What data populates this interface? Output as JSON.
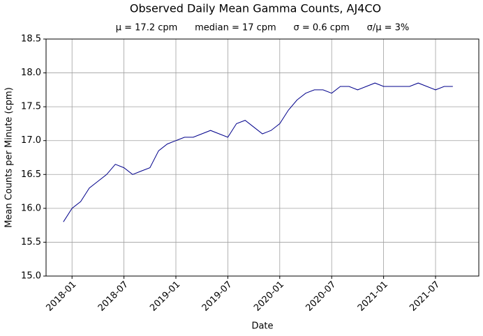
{
  "chart_data": {
    "type": "line",
    "title": "Observed Daily Mean Gamma Counts, AJ4CO",
    "subtitle": "μ = 17.2 cpm      median = 17 cpm      σ = 0.6 cpm      σ/μ = 3%",
    "xlabel": "Date",
    "ylabel": "Mean Counts per Minute (cpm)",
    "x": [
      "2017-12",
      "2018-01",
      "2018-02",
      "2018-03",
      "2018-04",
      "2018-05",
      "2018-06",
      "2018-07",
      "2018-08",
      "2018-09",
      "2018-10",
      "2018-11",
      "2018-12",
      "2019-01",
      "2019-02",
      "2019-03",
      "2019-04",
      "2019-05",
      "2019-06",
      "2019-07",
      "2019-08",
      "2019-09",
      "2019-10",
      "2019-11",
      "2019-12",
      "2020-01",
      "2020-02",
      "2020-03",
      "2020-04",
      "2020-05",
      "2020-06",
      "2020-07",
      "2020-08",
      "2020-09",
      "2020-10",
      "2020-11",
      "2020-12",
      "2021-01",
      "2021-02",
      "2021-03",
      "2021-04",
      "2021-05",
      "2021-06",
      "2021-07",
      "2021-08",
      "2021-09"
    ],
    "series": [
      {
        "name": "AJ4CO",
        "color": "#00008b",
        "values": [
          15.8,
          16.0,
          16.1,
          16.3,
          16.4,
          16.5,
          16.65,
          16.6,
          16.5,
          16.55,
          16.6,
          16.85,
          16.95,
          17.0,
          17.05,
          17.05,
          17.1,
          17.15,
          17.1,
          17.05,
          17.25,
          17.3,
          17.2,
          17.1,
          17.15,
          17.25,
          17.45,
          17.6,
          17.7,
          17.75,
          17.75,
          17.7,
          17.8,
          17.8,
          17.75,
          17.8,
          17.85,
          17.8,
          17.8,
          17.8,
          17.8,
          17.85,
          17.8,
          17.75,
          17.8,
          17.8
        ]
      }
    ],
    "xlim": [
      "2017-10",
      "2021-12"
    ],
    "xticks": [
      "2018-01",
      "2018-07",
      "2019-01",
      "2019-07",
      "2020-01",
      "2020-07",
      "2021-01",
      "2021-07"
    ],
    "ylim": [
      15,
      18.5
    ],
    "yticks": [
      {
        "value": 15,
        "label": "15.0"
      },
      15.5,
      {
        "value": 16,
        "label": "16.0"
      },
      16.5,
      {
        "value": 17,
        "label": "17.0"
      },
      17.5,
      {
        "value": 18,
        "label": "18.0"
      },
      18.5
    ],
    "grid": true
  }
}
